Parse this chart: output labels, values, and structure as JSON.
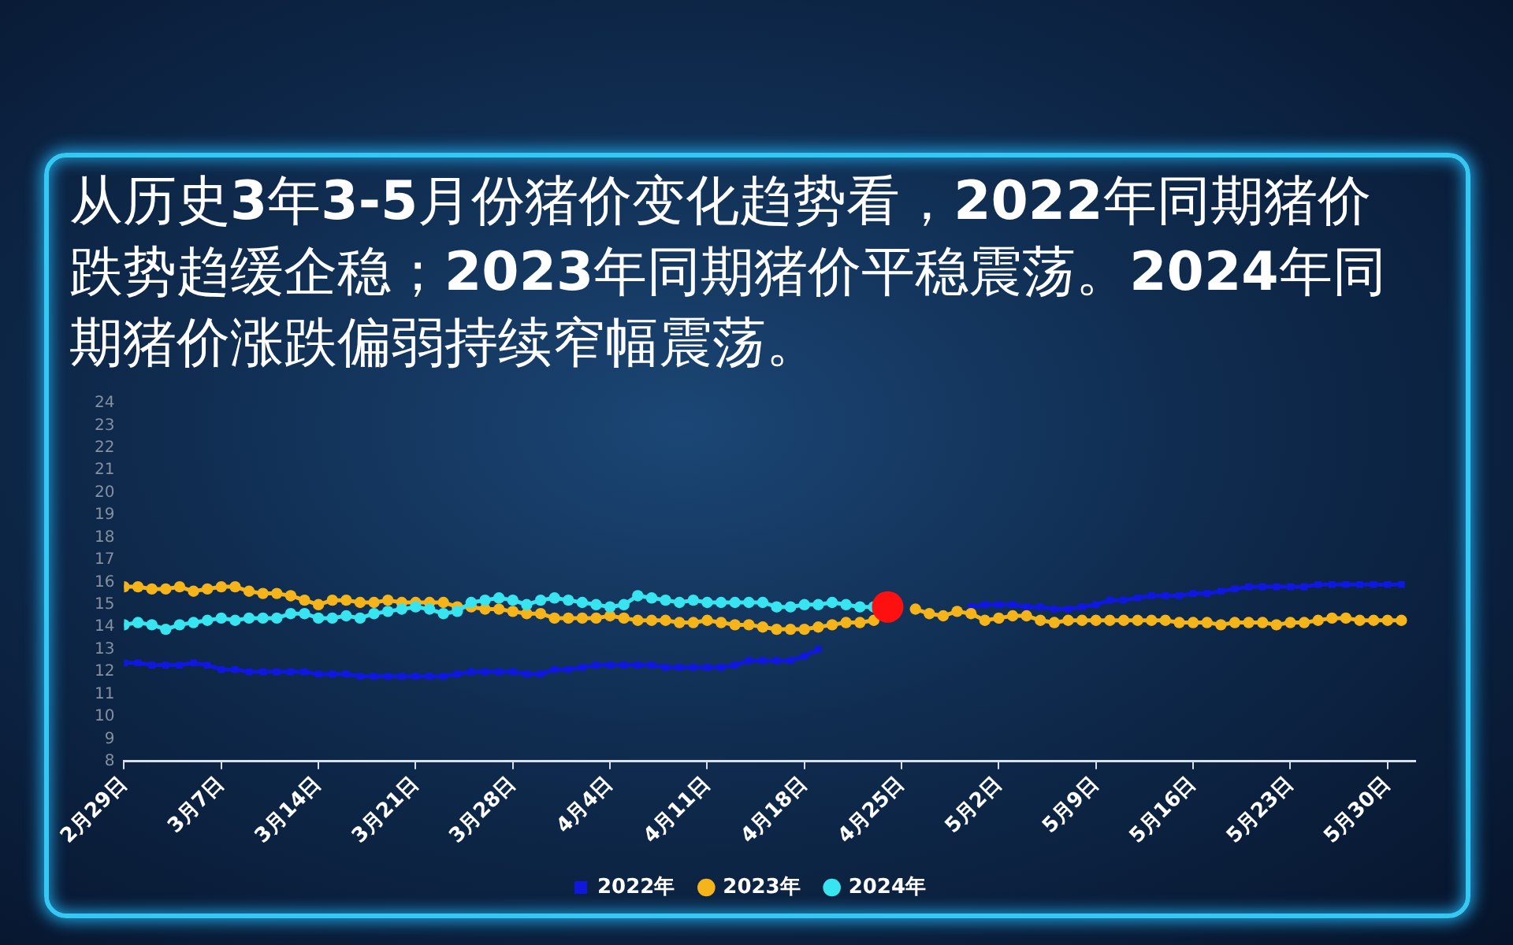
{
  "chart_data": {
    "type": "line",
    "title": "从历史3年3-5月份猪价变化趋势看，2022年同期猪价跌势趋缓企稳；2023年同期猪价平稳震荡。2024年同期猪价涨跌偏弱持续窄幅震荡。",
    "x": [
      "--02-29",
      "--03-01",
      "--03-02",
      "--03-03",
      "--03-04",
      "--03-05",
      "--03-06",
      "--03-07",
      "--03-08",
      "--03-09",
      "--03-10",
      "--03-11",
      "--03-12",
      "--03-13",
      "--03-14",
      "--03-15",
      "--03-16",
      "--03-17",
      "--03-18",
      "--03-19",
      "--03-20",
      "--03-21",
      "--03-22",
      "--03-23",
      "--03-24",
      "--03-25",
      "--03-26",
      "--03-27",
      "--03-28",
      "--03-29",
      "--03-30",
      "--03-31",
      "--04-01",
      "--04-02",
      "--04-03",
      "--04-04",
      "--04-05",
      "--04-06",
      "--04-07",
      "--04-08",
      "--04-09",
      "--04-10",
      "--04-11",
      "--04-12",
      "--04-13",
      "--04-14",
      "--04-15",
      "--04-16",
      "--04-17",
      "--04-18",
      "--04-19",
      "--04-20",
      "--04-21",
      "--04-22",
      "--04-23",
      "--04-24",
      "--04-25",
      "--04-26",
      "--04-27",
      "--04-28",
      "--04-29",
      "--04-30",
      "--05-01",
      "--05-02",
      "--05-03",
      "--05-04",
      "--05-05",
      "--05-06",
      "--05-07",
      "--05-08",
      "--05-09",
      "--05-10",
      "--05-11",
      "--05-12",
      "--05-13",
      "--05-14",
      "--05-15",
      "--05-16",
      "--05-17",
      "--05-18",
      "--05-19",
      "--05-20",
      "--05-21",
      "--05-22",
      "--05-23",
      "--05-24",
      "--05-25",
      "--05-26",
      "--05-27",
      "--05-28",
      "--05-29",
      "--05-30",
      "--05-31"
    ],
    "xlim": [
      "--02-29",
      "--06-01"
    ],
    "xticks": [
      {
        "value": "--02-29",
        "label": "2月29日"
      },
      {
        "value": "--03-07",
        "label": "3月7日"
      },
      {
        "value": "--03-14",
        "label": "3月14日"
      },
      {
        "value": "--03-21",
        "label": "3月21日"
      },
      {
        "value": "--03-28",
        "label": "3月28日"
      },
      {
        "value": "--04-04",
        "label": "4月4日"
      },
      {
        "value": "--04-11",
        "label": "4月11日"
      },
      {
        "value": "--04-18",
        "label": "4月18日"
      },
      {
        "value": "--04-25",
        "label": "4月25日"
      },
      {
        "value": "--05-02",
        "label": "5月2日"
      },
      {
        "value": "--05-09",
        "label": "5月9日"
      },
      {
        "value": "--05-16",
        "label": "5月16日"
      },
      {
        "value": "--05-23",
        "label": "5月23日"
      },
      {
        "value": "--05-30",
        "label": "5月30日"
      }
    ],
    "ylim": [
      8,
      24
    ],
    "yticks": [
      8,
      9,
      10,
      11,
      12,
      13,
      14,
      15,
      16,
      17,
      18,
      19,
      20,
      21,
      22,
      23,
      24
    ],
    "legend": "bottom",
    "series": [
      {
        "name": "2022年",
        "color": "#1018e0",
        "marker": "square",
        "values": [
          12.4,
          12.4,
          12.3,
          12.3,
          12.3,
          12.4,
          12.3,
          12.1,
          12.1,
          12.0,
          12.0,
          12.0,
          12.0,
          12.0,
          11.9,
          11.9,
          11.9,
          11.8,
          11.8,
          11.8,
          11.8,
          11.8,
          11.8,
          11.8,
          11.9,
          12.0,
          12.0,
          12.0,
          12.0,
          11.9,
          11.9,
          12.1,
          12.1,
          12.2,
          12.3,
          12.3,
          12.3,
          12.3,
          12.3,
          12.2,
          12.2,
          12.2,
          12.2,
          12.2,
          12.3,
          12.5,
          12.5,
          12.5,
          12.5,
          12.7,
          13.0,
          null,
          null,
          null,
          null,
          null,
          null,
          null,
          null,
          null,
          null,
          14.9,
          15.0,
          15.0,
          15.0,
          14.9,
          14.9,
          14.8,
          14.8,
          14.9,
          15.0,
          15.2,
          15.2,
          15.3,
          15.4,
          15.4,
          15.4,
          15.5,
          15.5,
          15.6,
          15.7,
          15.8,
          15.8,
          15.8,
          15.8,
          15.8,
          15.9,
          15.9,
          15.9,
          15.9,
          15.9,
          15.9,
          15.9
        ]
      },
      {
        "name": "2023年",
        "color": "#f4b41a",
        "marker": "circle",
        "values": [
          15.8,
          15.8,
          15.7,
          15.7,
          15.8,
          15.6,
          15.7,
          15.8,
          15.8,
          15.6,
          15.5,
          15.5,
          15.4,
          15.2,
          15.0,
          15.2,
          15.2,
          15.1,
          15.1,
          15.2,
          15.1,
          15.1,
          15.1,
          15.1,
          14.9,
          14.9,
          14.8,
          14.8,
          14.7,
          14.6,
          14.6,
          14.4,
          14.4,
          14.4,
          14.4,
          14.5,
          14.4,
          14.3,
          14.3,
          14.3,
          14.2,
          14.2,
          14.3,
          14.2,
          14.1,
          14.1,
          14.0,
          13.9,
          13.9,
          13.9,
          14.0,
          14.1,
          14.2,
          14.2,
          14.3,
          null,
          null,
          14.8,
          14.6,
          14.5,
          14.7,
          14.6,
          14.3,
          14.4,
          14.5,
          14.5,
          14.3,
          14.2,
          14.3,
          14.3,
          14.3,
          14.3,
          14.3,
          14.3,
          14.3,
          14.3,
          14.2,
          14.2,
          14.2,
          14.1,
          14.2,
          14.2,
          14.2,
          14.1,
          14.2,
          14.2,
          14.3,
          14.4,
          14.4,
          14.3,
          14.3,
          14.3,
          14.3
        ]
      },
      {
        "name": "2024年",
        "color": "#38e4f0",
        "marker": "circle",
        "values": [
          14.1,
          14.2,
          14.1,
          13.9,
          14.1,
          14.2,
          14.3,
          14.4,
          14.3,
          14.4,
          14.4,
          14.4,
          14.6,
          14.6,
          14.4,
          14.4,
          14.5,
          14.4,
          14.6,
          14.7,
          14.8,
          14.9,
          14.8,
          14.6,
          14.7,
          15.1,
          15.2,
          15.3,
          15.2,
          15.0,
          15.2,
          15.3,
          15.2,
          15.1,
          15.0,
          14.9,
          15.0,
          15.4,
          15.3,
          15.2,
          15.1,
          15.2,
          15.1,
          15.1,
          15.1,
          15.1,
          15.1,
          14.9,
          14.9,
          15.0,
          15.0,
          15.1,
          15.0,
          14.9,
          14.9,
          null,
          null,
          null,
          null,
          null,
          null,
          null,
          null,
          null,
          null,
          null,
          null,
          null,
          null,
          null,
          null,
          null,
          null,
          null,
          null,
          null,
          null,
          null,
          null,
          null,
          null,
          null,
          null,
          null,
          null,
          null,
          null,
          null,
          null,
          null,
          null,
          null,
          null
        ]
      },
      {
        "type": "scatter",
        "color": "#ff1010",
        "marker": "circle",
        "x": [
          "--04-24"
        ],
        "values": [
          14.9
        ]
      }
    ]
  }
}
